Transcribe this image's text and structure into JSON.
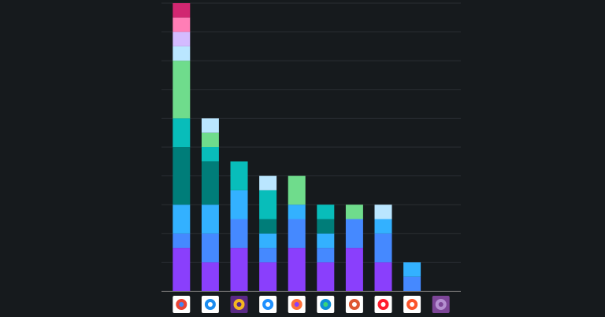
{
  "chart_data": {
    "type": "stacked_bar",
    "categories": [
      null,
      null,
      null,
      null,
      null,
      null,
      null,
      null,
      null,
      null
    ],
    "series": [
      {
        "color": "#8a3ffc",
        "values": [
          1.5,
          1,
          1.5,
          1,
          1.5,
          1,
          1.5,
          1,
          0,
          0
        ]
      },
      {
        "color": "#4589ff",
        "values": [
          0.5,
          1,
          1,
          0.5,
          1,
          0.5,
          1,
          1,
          0.5,
          0
        ]
      },
      {
        "color": "#33b1ff",
        "values": [
          1,
          1,
          1,
          0.5,
          0.5,
          0.5,
          0,
          0.5,
          0.5,
          0
        ]
      },
      {
        "color": "#007d79",
        "values": [
          2,
          1.5,
          0,
          0.5,
          0,
          0.5,
          0,
          0,
          0,
          0
        ]
      },
      {
        "color": "#08bdba",
        "values": [
          1,
          0.5,
          1,
          1,
          0,
          0.5,
          0,
          0,
          0,
          0
        ]
      },
      {
        "color": "#6fdc8c",
        "values": [
          2,
          0.5,
          0,
          0,
          1,
          0,
          0.5,
          0,
          0,
          0
        ]
      },
      {
        "color": "#bae6ff",
        "values": [
          0.5,
          0.5,
          0,
          0.5,
          0,
          0,
          0,
          0.5,
          0,
          0
        ]
      },
      {
        "color": "#d4bbff",
        "values": [
          0.5,
          0,
          0,
          0,
          0,
          0,
          0,
          0,
          0,
          0
        ]
      },
      {
        "color": "#ff7eb6",
        "values": [
          0.5,
          0,
          0,
          0,
          0,
          0,
          0,
          0,
          0,
          0
        ]
      },
      {
        "color": "#d12771",
        "values": [
          0.5,
          0,
          0,
          0,
          0,
          0,
          0,
          0,
          0,
          0
        ]
      }
    ],
    "ylim": [
      0,
      10
    ],
    "yticks": [
      0,
      1,
      2,
      3,
      4,
      5,
      6,
      7,
      8,
      9,
      10
    ],
    "grid": true
  }
}
